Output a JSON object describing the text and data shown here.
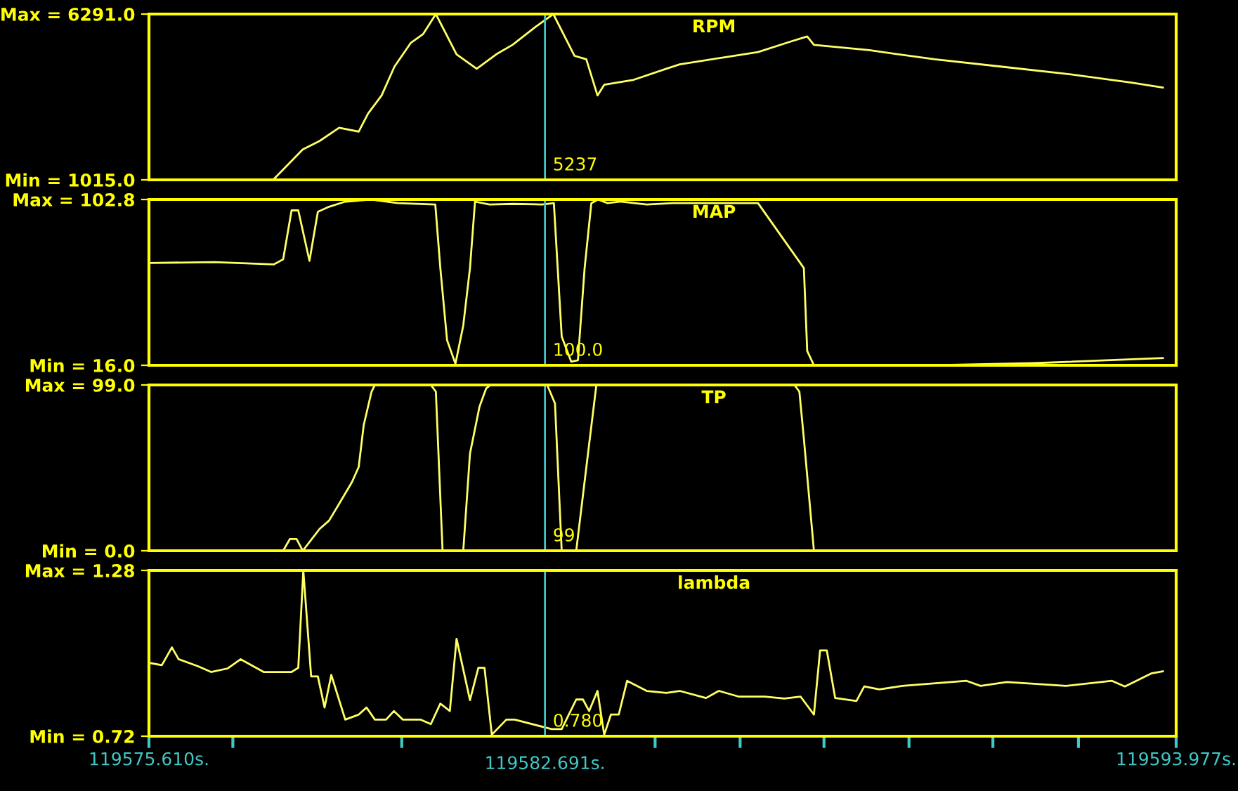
{
  "chart_data": [
    {
      "type": "line",
      "title": "RPM",
      "tick_labels": "y",
      "xlim": [
        119575.61,
        119593.977
      ],
      "ylim": [
        1015,
        6291
      ],
      "yticks": [
        {
          "value": 1015,
          "label": "Min = 1015.0"
        },
        {
          "value": 6291,
          "label": "Max = 6291.0"
        }
      ],
      "ref_lines": [
        {
          "axis": "x",
          "value": 119582.691,
          "color": "#40c8c8"
        }
      ],
      "annotations": [
        "5237"
      ],
      "series": [
        {
          "color": "#ffff66",
          "x": [
            119577.31,
            119577.83,
            119578.36,
            119578.66,
            119579.01,
            119579.36,
            119579.53,
            119579.77,
            119580.0,
            119580.29,
            119580.51,
            119580.74,
            119581.11,
            119581.47,
            119581.82,
            119582.11,
            119582.52,
            119582.84,
            119583.22,
            119583.43,
            119583.63,
            119583.75,
            119584.28,
            119584.86,
            119585.1,
            119585.92,
            119586.5,
            119587.09,
            119587.38,
            119587.5,
            119588.49,
            119589.66,
            119590.84,
            119592.01,
            119593.18,
            119593.74
          ],
          "values": [
            1015,
            1015,
            1980,
            2250,
            2670,
            2550,
            3130,
            3700,
            4620,
            5370,
            5650,
            6291,
            5010,
            4550,
            5010,
            5310,
            5880,
            6291,
            4960,
            4850,
            3700,
            4040,
            4200,
            4550,
            4690,
            4920,
            5080,
            5420,
            5580,
            5310,
            5140,
            4850,
            4620,
            4390,
            4110,
            3950
          ]
        }
      ]
    },
    {
      "type": "line",
      "title": "MAP",
      "tick_labels": "y",
      "xlim": [
        119575.61,
        119593.977
      ],
      "ylim": [
        16.0,
        102.8
      ],
      "yticks": [
        {
          "value": 16.0,
          "label": "Min = 16.0"
        },
        {
          "value": 102.8,
          "label": "Max = 102.8"
        }
      ],
      "ref_lines": [
        {
          "axis": "x",
          "value": 119582.691,
          "color": "#40c8c8"
        }
      ],
      "annotations": [
        "100.0"
      ],
      "series": [
        {
          "color": "#ffff66",
          "x": [
            119575.61,
            119576.78,
            119577.84,
            119578.01,
            119578.16,
            119578.28,
            119578.48,
            119578.63,
            119578.83,
            119579.12,
            119579.59,
            119580.06,
            119580.73,
            119580.82,
            119580.94,
            119581.09,
            119581.23,
            119581.35,
            119581.44,
            119581.7,
            119582.12,
            119582.64,
            119582.85,
            119582.99,
            119583.16,
            119583.28,
            119583.4,
            119583.52,
            119583.64,
            119583.81,
            119584.04,
            119584.51,
            119584.98,
            119585.68,
            119586.5,
            119587.32,
            119587.38,
            119587.5,
            119587.65,
            119589.66,
            119591.42,
            119593.74
          ],
          "values": [
            69.6,
            70.0,
            68.8,
            71.5,
            97.1,
            97.1,
            70.7,
            96.4,
            99.0,
            101.7,
            102.8,
            100.9,
            100.2,
            66.9,
            29.2,
            16.8,
            36.8,
            66.9,
            101.7,
            100.2,
            100.5,
            100.2,
            100.9,
            31.1,
            17.9,
            18.6,
            66.9,
            100.9,
            102.8,
            100.9,
            101.7,
            100.2,
            100.9,
            100.9,
            100.9,
            66.9,
            23.5,
            16.0,
            16.0,
            16.0,
            17.1,
            19.8
          ]
        }
      ]
    },
    {
      "type": "line",
      "title": "TP",
      "tick_labels": "y",
      "xlim": [
        119575.61,
        119593.977
      ],
      "ylim": [
        0.0,
        99.0
      ],
      "yticks": [
        {
          "value": 0.0,
          "label": "Min = 0.0"
        },
        {
          "value": 99.0,
          "label": "Max = 99.0"
        }
      ],
      "ref_lines": [
        {
          "axis": "x",
          "value": 119582.691,
          "color": "#40c8c8"
        }
      ],
      "annotations": [
        "99"
      ],
      "series": [
        {
          "color": "#ffff66",
          "x": [
            119578.01,
            119578.13,
            119578.25,
            119578.36,
            119578.66,
            119578.83,
            119579.01,
            119579.24,
            119579.36,
            119579.45,
            119579.59,
            119579.65,
            119580.65,
            119580.74,
            119580.86,
            119581.23,
            119581.35,
            119581.52,
            119581.64,
            119581.72,
            119582.12,
            119582.73,
            119582.87,
            119582.99,
            119583.25,
            119583.46,
            119583.61,
            119587.15,
            119587.24,
            119587.32,
            119587.5,
            119593.74
          ],
          "values": [
            0,
            7,
            7,
            0,
            13,
            18,
            28,
            41,
            50,
            75,
            95,
            99,
            99,
            95,
            0,
            0,
            58,
            86,
            97,
            99,
            99,
            99,
            88,
            0,
            0,
            58,
            99,
            99,
            95,
            67,
            0,
            0
          ]
        }
      ]
    },
    {
      "type": "line",
      "title": "lambda",
      "xlim": [
        119575.61,
        119593.977
      ],
      "ylim": [
        0.72,
        1.28
      ],
      "yticks": [
        {
          "value": 0.72,
          "label": "Min = 0.72"
        },
        {
          "value": 1.28,
          "label": "Max = 1.28"
        }
      ],
      "xticks": [
        {
          "value": 119575.61,
          "label": "119575.610s."
        },
        {
          "value": 119577.11,
          "label": null
        },
        {
          "value": 119580.13,
          "label": null
        },
        {
          "value": 119584.66,
          "label": null
        },
        {
          "value": 119586.18,
          "label": null
        },
        {
          "value": 119587.68,
          "label": null
        },
        {
          "value": 119589.2,
          "label": null
        },
        {
          "value": 119590.7,
          "label": null
        },
        {
          "value": 119592.23,
          "label": null
        },
        {
          "value": 119593.977,
          "label": "119593.977s."
        }
      ],
      "ref_lines": [
        {
          "axis": "x",
          "value": 119582.691,
          "label": "119582.691s.",
          "color": "#40c8c8"
        }
      ],
      "annotations": [
        "0.780"
      ],
      "series": [
        {
          "color": "#ffff66",
          "x": [
            119575.61,
            119575.84,
            119576.02,
            119576.14,
            119576.49,
            119576.72,
            119577.02,
            119577.25,
            119577.66,
            119578.16,
            119578.28,
            119578.37,
            119578.51,
            119578.63,
            119578.75,
            119578.87,
            119579.12,
            119579.36,
            119579.5,
            119579.65,
            119579.85,
            119579.99,
            119580.15,
            119580.47,
            119580.65,
            119580.82,
            119580.99,
            119581.11,
            119581.35,
            119581.5,
            119581.61,
            119581.74,
            119582.0,
            119582.15,
            119582.81,
            119582.99,
            119583.25,
            119583.37,
            119583.48,
            119583.63,
            119583.75,
            119583.87,
            119584.01,
            119584.16,
            119584.51,
            119584.86,
            119585.1,
            119585.57,
            119585.8,
            119586.15,
            119586.62,
            119586.97,
            119587.26,
            119587.5,
            119587.61,
            119587.73,
            119587.88,
            119588.26,
            119588.4,
            119588.67,
            119589.08,
            119590.23,
            119590.48,
            119590.95,
            119592.01,
            119592.83,
            119593.06,
            119593.53,
            119593.74
          ],
          "values": [
            0.968,
            0.96,
            1.02,
            0.98,
            0.956,
            0.937,
            0.949,
            0.98,
            0.937,
            0.937,
            0.951,
            1.28,
            0.922,
            0.922,
            0.817,
            0.927,
            0.776,
            0.793,
            0.817,
            0.776,
            0.776,
            0.805,
            0.776,
            0.776,
            0.761,
            0.83,
            0.805,
            1.049,
            0.842,
            0.951,
            0.951,
            0.725,
            0.776,
            0.776,
            0.744,
            0.744,
            0.844,
            0.844,
            0.805,
            0.873,
            0.725,
            0.793,
            0.793,
            0.907,
            0.873,
            0.866,
            0.873,
            0.849,
            0.873,
            0.854,
            0.854,
            0.847,
            0.854,
            0.793,
            1.01,
            1.01,
            0.849,
            0.839,
            0.888,
            0.878,
            0.89,
            0.907,
            0.89,
            0.903,
            0.89,
            0.907,
            0.888,
            0.932,
            0.939
          ]
        }
      ]
    }
  ]
}
